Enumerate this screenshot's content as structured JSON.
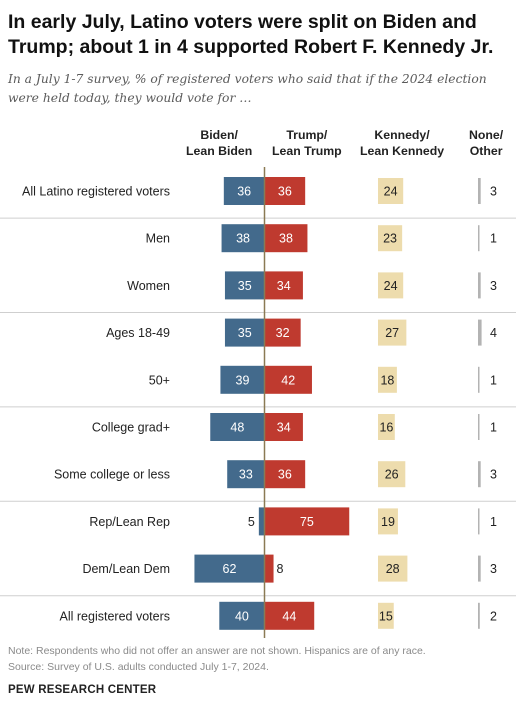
{
  "title": "In early July, Latino voters were split on Biden and Trump; about 1 in 4 supported Robert F. Kennedy Jr.",
  "subtitle": "In a July 1-7 survey, % of registered voters who said that if the 2024 election were held today, they would vote for …",
  "columns": {
    "biden": [
      "Biden/",
      "Lean Biden"
    ],
    "trump": [
      "Trump/",
      "Lean Trump"
    ],
    "kennedy": [
      "Kennedy/",
      "Lean Kennedy"
    ],
    "none": [
      "None/",
      "Other"
    ]
  },
  "note": "Note: Respondents who did not offer an answer are not shown. Hispanics are of any race.",
  "source": "Source: Survey of U.S. adults conducted July 1-7, 2024.",
  "brand": "PEW RESEARCH CENTER",
  "colors": {
    "biden": "#436a8c",
    "trump": "#bf3a2f",
    "kennedy": "#eddcad",
    "none": "#b3b3b3",
    "axis": "#8b7a54",
    "separator": "#cfcfcf"
  },
  "chart_data": {
    "type": "bar",
    "categories": [
      "All Latino registered voters",
      "Men",
      "Women",
      "Ages 18-49",
      "50+",
      "College grad+",
      "Some college or less",
      "Rep/Lean Rep",
      "Dem/Lean Dem",
      "All registered voters"
    ],
    "series": [
      {
        "name": "Biden/Lean Biden",
        "values": [
          36,
          38,
          35,
          35,
          39,
          48,
          33,
          5,
          62,
          40
        ]
      },
      {
        "name": "Trump/Lean Trump",
        "values": [
          36,
          38,
          34,
          32,
          42,
          34,
          36,
          75,
          8,
          44
        ]
      },
      {
        "name": "Kennedy/Lean Kennedy",
        "values": [
          24,
          23,
          24,
          27,
          18,
          16,
          26,
          19,
          28,
          15
        ]
      },
      {
        "name": "None/Other",
        "values": [
          3,
          1,
          3,
          4,
          1,
          1,
          3,
          1,
          3,
          2
        ]
      }
    ],
    "group_separators_after": [
      0,
      2,
      4,
      6,
      8
    ],
    "title": "",
    "xlabel": "",
    "ylabel": ""
  }
}
